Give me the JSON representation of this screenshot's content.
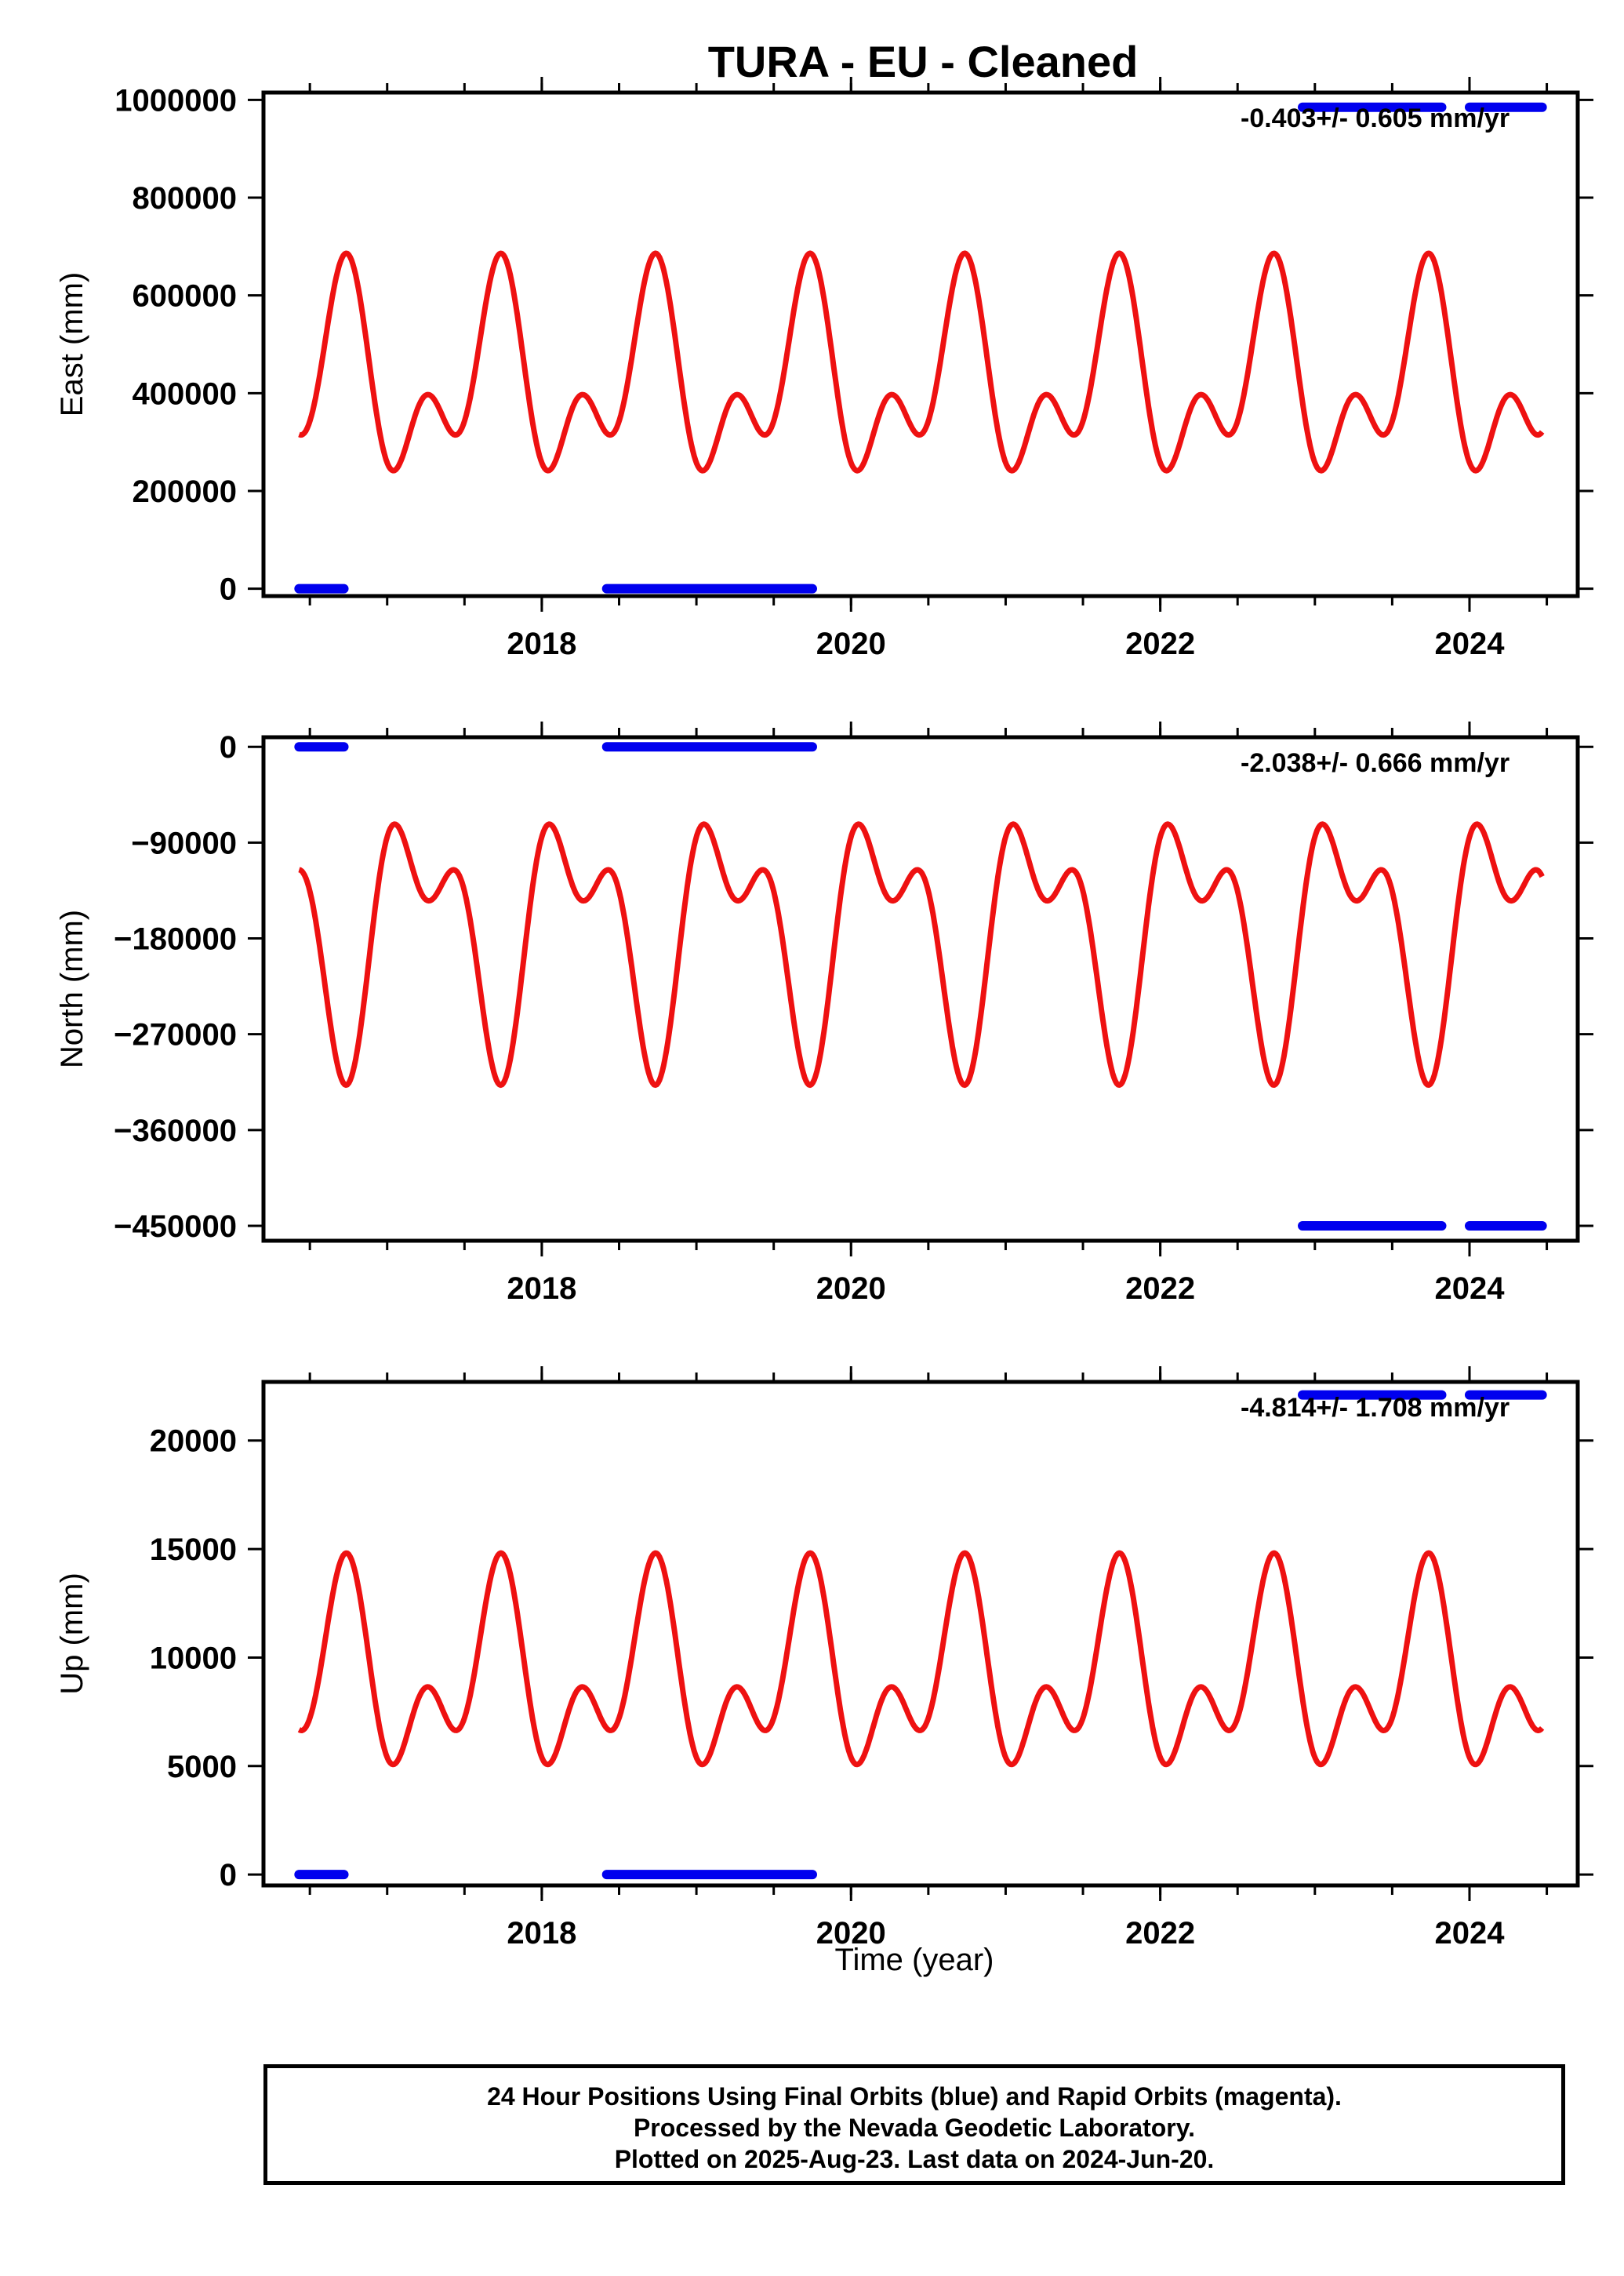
{
  "chart_data": {
    "title": "TURA  - EU - Cleaned",
    "type": "line",
    "xlabel": "Time (year)",
    "x_ticks": [
      2018,
      2020,
      2022,
      2024
    ],
    "xlim": [
      2016.2,
      2024.7
    ],
    "panels": [
      {
        "id": "east",
        "ylabel": "East (mm)",
        "ylim": [
          -15000,
          1015000
        ],
        "y_ticks": [
          0,
          200000,
          400000,
          600000,
          800000,
          1000000
        ],
        "y_tick_labels": [
          "0",
          "200000",
          "400000",
          "600000",
          "800000",
          "1000000"
        ],
        "rate_text": "-0.403+/- 0.605 mm/yr",
        "model": {
          "mean": 420000,
          "a1": 150000,
          "p1": 5.0,
          "a2": 120000,
          "p2": 3.2,
          "start": 2016.43,
          "end": 2024.47
        },
        "data_segments": [
          {
            "start": 2016.43,
            "end": 2016.72,
            "value": 0
          },
          {
            "start": 2018.42,
            "end": 2019.75,
            "value": 0
          },
          {
            "start": 2022.92,
            "end": 2023.82,
            "value": 985000
          },
          {
            "start": 2024.0,
            "end": 2024.47,
            "value": 985000
          }
        ]
      },
      {
        "id": "north",
        "ylabel": "North (mm)",
        "ylim": [
          -464000,
          9000
        ],
        "y_ticks": [
          0,
          -90000,
          -180000,
          -270000,
          -360000,
          -450000
        ],
        "y_tick_labels": [
          "0",
          "−90000",
          "−180000",
          "−270000",
          "−360000",
          "−450000"
        ],
        "rate_text": "-2.038+/- 0.666 mm/yr",
        "model": {
          "mean": -170000,
          "a1": -90000,
          "p1": 5.0,
          "a2": -60000,
          "p2": 3.2,
          "start": 2016.43,
          "end": 2024.47
        },
        "data_segments": [
          {
            "start": 2016.43,
            "end": 2016.72,
            "value": 0
          },
          {
            "start": 2018.42,
            "end": 2019.75,
            "value": 0
          },
          {
            "start": 2022.92,
            "end": 2023.82,
            "value": -450000
          },
          {
            "start": 2024.0,
            "end": 2024.47,
            "value": -450000
          }
        ]
      },
      {
        "id": "up",
        "ylabel": "Up (mm)",
        "ylim": [
          -500,
          22700
        ],
        "y_ticks": [
          0,
          5000,
          10000,
          15000,
          20000
        ],
        "y_tick_labels": [
          "0",
          "5000",
          "10000",
          "15000",
          "20000"
        ],
        "rate_text": "-4.814+/- 1.708 mm/yr",
        "model": {
          "mean": 9000,
          "a1": 3200,
          "p1": 5.0,
          "a2": 2700,
          "p2": 3.2,
          "start": 2016.43,
          "end": 2024.47
        },
        "data_segments": [
          {
            "start": 2016.43,
            "end": 2016.72,
            "value": 0
          },
          {
            "start": 2018.42,
            "end": 2019.75,
            "value": 0
          },
          {
            "start": 2022.92,
            "end": 2023.82,
            "value": 22100
          },
          {
            "start": 2024.0,
            "end": 2024.47,
            "value": 22100
          }
        ]
      }
    ],
    "colors": {
      "model": "#ee1111",
      "data": "#0000ee",
      "frame": "#000000"
    }
  },
  "caption": {
    "line1": "24 Hour Positions Using Final Orbits (blue) and Rapid Orbits (magenta).",
    "line2": "Processed by the Nevada Geodetic Laboratory.",
    "line3": "Plotted on 2025-Aug-23. Last data on 2024-Jun-20."
  }
}
